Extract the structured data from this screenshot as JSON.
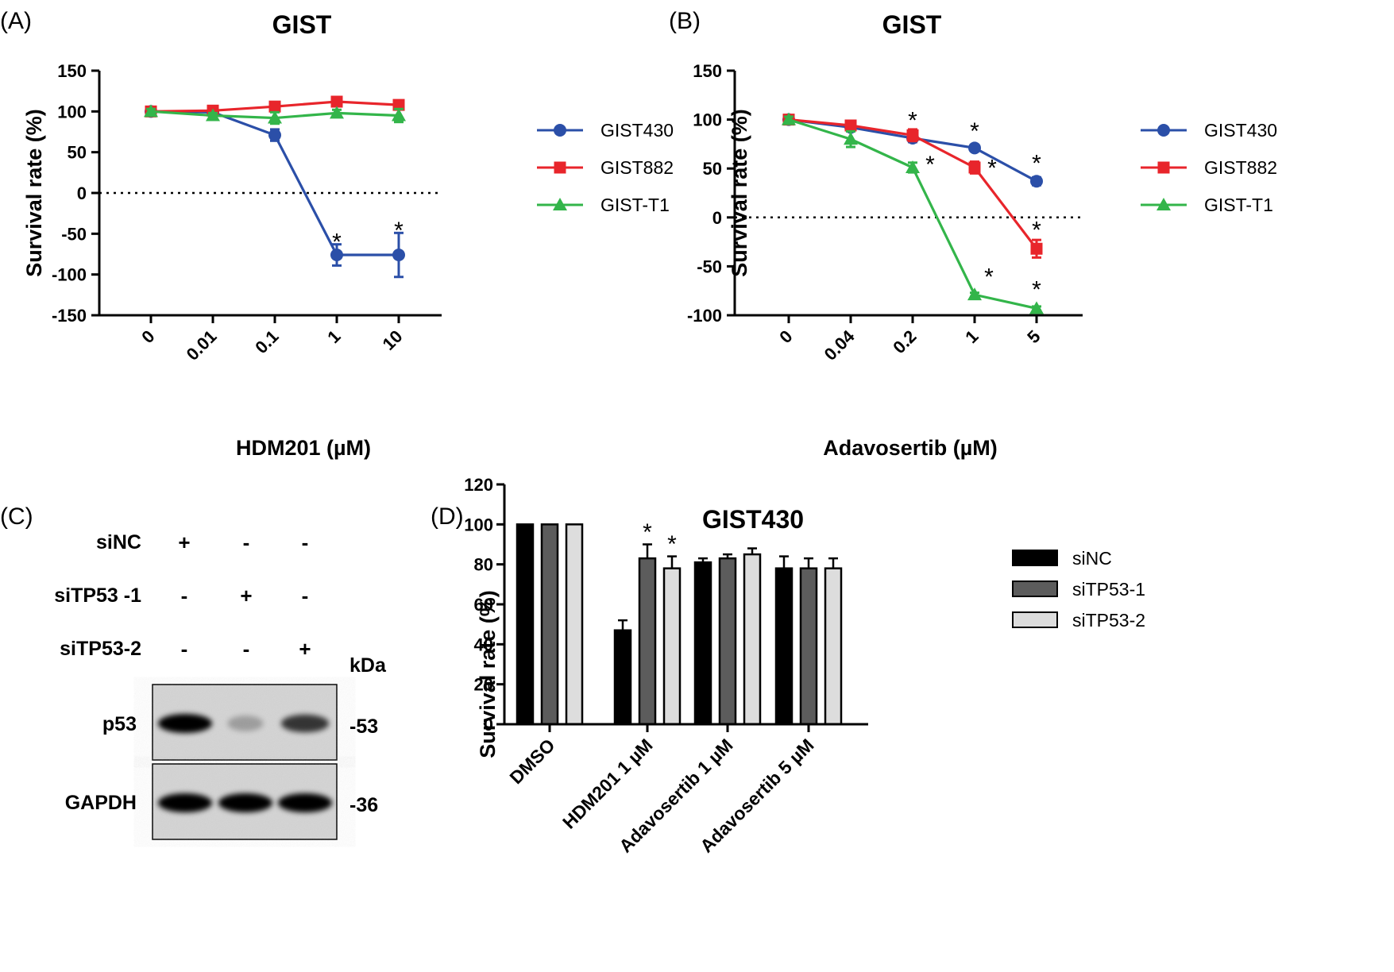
{
  "chart_data": [
    {
      "type": "line",
      "panel_label": "(A)",
      "title": "GIST",
      "xlabel": "HDM201 (µM)",
      "ylabel": "Survival rate (%)",
      "ylim": [
        -150,
        150
      ],
      "yticks": [
        "150",
        "100",
        "50",
        "0",
        "-50",
        "-100",
        "-150"
      ],
      "x": [
        "0",
        "0.01",
        "0.1",
        "1",
        "10"
      ],
      "reference_line": 0,
      "legend_position": "right",
      "series": [
        {
          "name": "GIST430",
          "color": "#2b4fa8",
          "marker": "circle",
          "values": [
            100,
            99,
            71,
            -76,
            -76
          ],
          "errors": [
            3,
            3,
            7,
            13,
            27
          ]
        },
        {
          "name": "GIST882",
          "color": "#e8252b",
          "marker": "square",
          "values": [
            100,
            101,
            106,
            112,
            108
          ],
          "errors": [
            3,
            3,
            4,
            4,
            4
          ]
        },
        {
          "name": "GIST-T1",
          "color": "#33b54a",
          "marker": "triangle",
          "values": [
            100,
            95,
            92,
            98,
            95
          ],
          "errors": [
            3,
            3,
            7,
            4,
            8
          ]
        }
      ],
      "annotations": [
        {
          "text": "*",
          "x": "1",
          "y": -58
        },
        {
          "text": "*",
          "x": "10",
          "y": -44
        }
      ]
    },
    {
      "type": "line",
      "panel_label": "(B)",
      "title": "GIST",
      "xlabel": "Adavosertib (µM)",
      "ylabel": "Survival rate (%)",
      "ylim": [
        -100,
        150
      ],
      "yticks": [
        "150",
        "100",
        "50",
        "0",
        "-50",
        "-100"
      ],
      "x": [
        "0",
        "0.04",
        "0.2",
        "1",
        "5"
      ],
      "reference_line": 0,
      "legend_position": "right",
      "series": [
        {
          "name": "GIST430",
          "color": "#2b4fa8",
          "marker": "circle",
          "values": [
            100,
            92,
            81,
            71,
            37
          ],
          "errors": [
            3,
            4,
            4,
            3,
            4
          ]
        },
        {
          "name": "GIST882",
          "color": "#e8252b",
          "marker": "square",
          "values": [
            100,
            94,
            84,
            51,
            -32
          ],
          "errors": [
            3,
            3,
            6,
            6,
            9
          ]
        },
        {
          "name": "GIST-T1",
          "color": "#33b54a",
          "marker": "triangle",
          "values": [
            100,
            80,
            51,
            -79,
            -93
          ],
          "errors": [
            3,
            8,
            5,
            2,
            2
          ]
        }
      ],
      "annotations": [
        {
          "text": "*",
          "x": "0.2",
          "y": 101,
          "dx": 0
        },
        {
          "text": "*",
          "x": "0.2",
          "y": 56,
          "dx": 22
        },
        {
          "text": "*",
          "x": "1",
          "y": 90,
          "dx": 0
        },
        {
          "text": "*",
          "x": "1",
          "y": 52,
          "dx": 22
        },
        {
          "text": "*",
          "x": "1",
          "y": -59,
          "dx": 18
        },
        {
          "text": "*",
          "x": "5",
          "y": 57,
          "dx": 0
        },
        {
          "text": "*",
          "x": "5",
          "y": -11,
          "dx": 0
        },
        {
          "text": "*",
          "x": "5",
          "y": -72,
          "dx": 0
        }
      ]
    },
    {
      "type": "bar",
      "panel_label": "(D)",
      "title": "GIST430",
      "xlabel": "",
      "ylabel": "Survival rate (%)",
      "ylim": [
        0,
        120
      ],
      "yticks": [
        "0",
        "20",
        "40",
        "60",
        "80",
        "100",
        "120"
      ],
      "categories": [
        "DMSO",
        "HDM201 1 µM",
        "Adavosertib 1 µM",
        "Adavosertib 5 µM"
      ],
      "legend_position": "right",
      "series": [
        {
          "name": "siNC",
          "color": "#000000",
          "values": [
            100,
            47,
            81,
            78
          ],
          "errors": [
            0,
            5,
            2,
            6
          ]
        },
        {
          "name": "siTP53-1",
          "color": "#5c5c5c",
          "values": [
            100,
            83,
            83,
            78
          ],
          "errors": [
            0,
            7,
            2,
            5
          ]
        },
        {
          "name": "siTP53-2",
          "color": "#dddddd",
          "values": [
            100,
            78,
            85,
            78
          ],
          "errors": [
            0,
            6,
            3,
            5
          ]
        }
      ],
      "annotations": [
        {
          "text": "*",
          "category": 1,
          "series": 1,
          "y": 97
        },
        {
          "text": "*",
          "category": 1,
          "series": 2,
          "y": 91
        }
      ]
    }
  ],
  "western_blot": {
    "panel_label": "(C)",
    "conditions": [
      {
        "name": "siNC",
        "lanes": [
          "+",
          "-",
          "-"
        ]
      },
      {
        "name": "siTP53 -1",
        "lanes": [
          "-",
          "+",
          "-"
        ]
      },
      {
        "name": "siTP53-2",
        "lanes": [
          "-",
          "-",
          "+"
        ]
      }
    ],
    "unit_label": "kDa",
    "bands": [
      {
        "protein": "p53",
        "mw": "-53",
        "intensity": [
          1.0,
          0.25,
          0.75
        ]
      },
      {
        "protein": "GAPDH",
        "mw": "-36",
        "intensity": [
          1.0,
          1.0,
          1.0
        ]
      }
    ]
  }
}
